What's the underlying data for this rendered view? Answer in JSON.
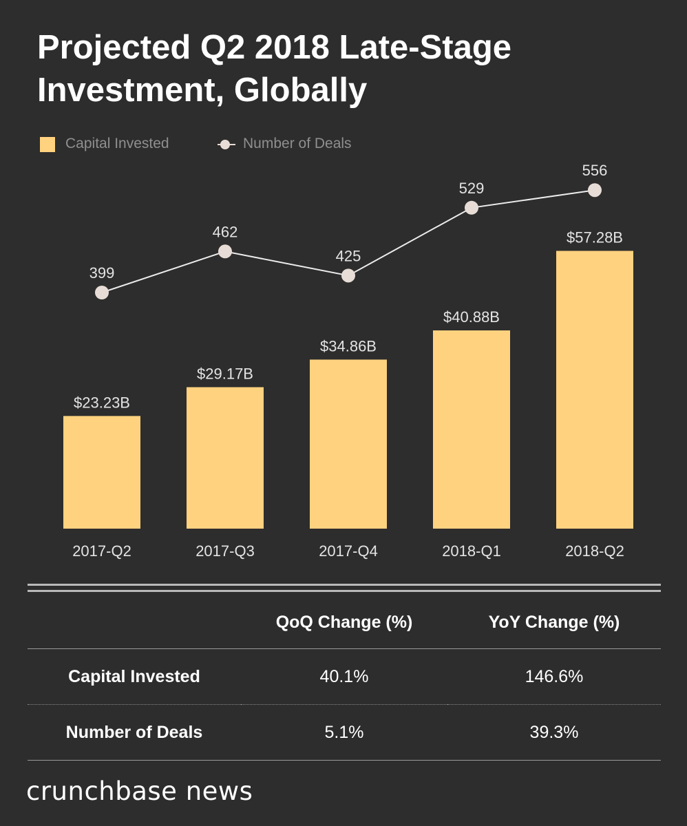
{
  "chart_data": {
    "type": "bar",
    "title_lines": [
      "Projected Q2 2018 Late-Stage",
      "Investment, Globally"
    ],
    "categories": [
      "2017-Q2",
      "2017-Q3",
      "2017-Q4",
      "2018-Q1",
      "2018-Q2"
    ],
    "series": [
      {
        "name": "Capital Invested",
        "type": "bar",
        "values": [
          23.23,
          29.17,
          34.86,
          40.88,
          57.28
        ],
        "labels": [
          "$23.23B",
          "$29.17B",
          "$34.86B",
          "$40.88B",
          "$57.28B"
        ],
        "color": "#ffd27f"
      },
      {
        "name": "Number of Deals",
        "type": "line",
        "values": [
          399,
          462,
          425,
          529,
          556
        ],
        "labels": [
          "399",
          "462",
          "425",
          "529",
          "556"
        ],
        "color": "#e8ddd6"
      }
    ],
    "legend_position": "top-left",
    "grid": false
  },
  "table": {
    "headers": [
      "",
      "QoQ Change (%)",
      "YoY Change (%)"
    ],
    "rows": [
      {
        "label": "Capital Invested",
        "qoq": "40.1%",
        "yoy": "146.6%"
      },
      {
        "label": "Number of Deals",
        "qoq": "5.1%",
        "yoy": "39.3%"
      }
    ]
  },
  "brand": "crunchbase news",
  "colors": {
    "background": "#2d2d2d",
    "bar": "#ffd27f",
    "line": "#e8ddd6",
    "text": "#e4e4e4",
    "legend_text": "#8f8f8f"
  }
}
